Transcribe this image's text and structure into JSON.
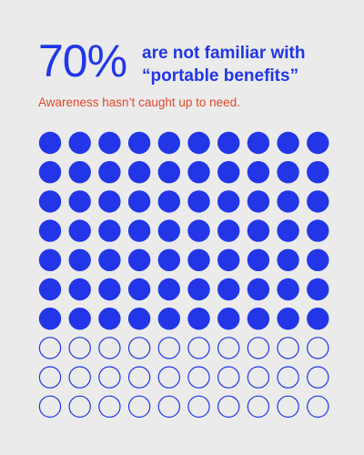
{
  "header": {
    "stat": "70%",
    "headline_line1": "are not familiar with",
    "headline_line2": "“portable benefits”",
    "subtitle": "Awareness hasn’t caught up to need."
  },
  "colors": {
    "background": "#ebebeb",
    "accent": "#2236e8",
    "subtitle": "#e5472e"
  },
  "chart_data": {
    "type": "waffle",
    "rows": 10,
    "columns": 10,
    "total": 100,
    "filled": 70,
    "empty": 30,
    "filled_style": "solid circle",
    "empty_style": "outlined circle"
  }
}
